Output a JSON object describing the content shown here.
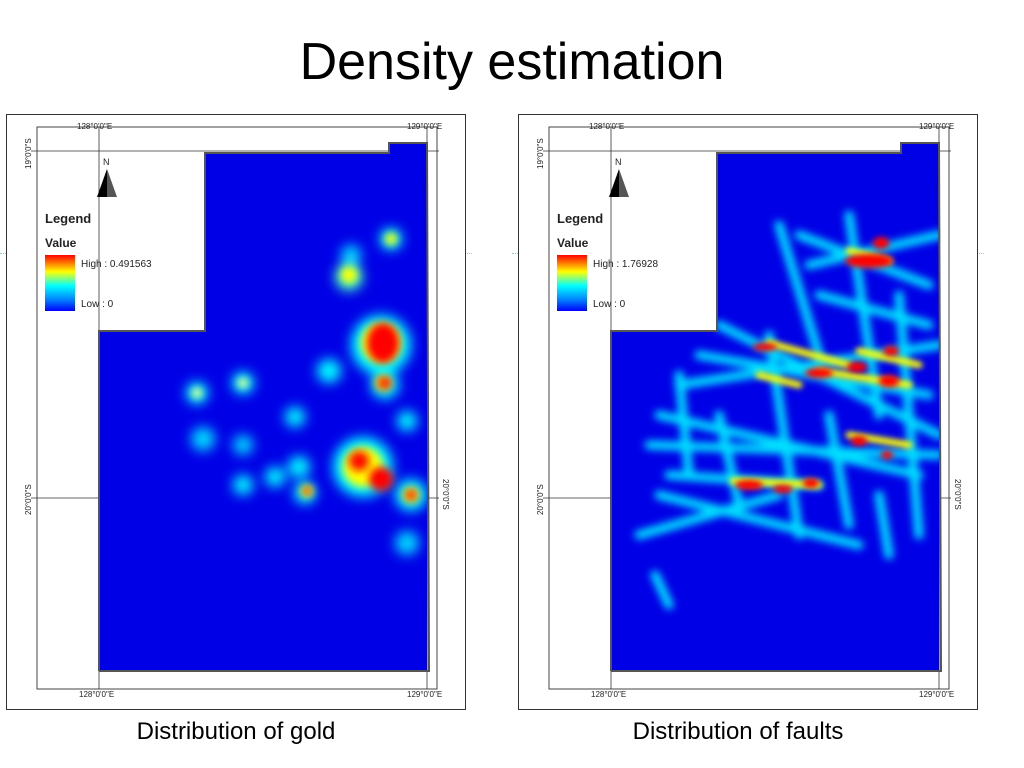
{
  "slide": {
    "title": "Density estimation"
  },
  "maps": [
    {
      "caption": "Distribution of gold",
      "legend": {
        "title": "Legend",
        "subtitle": "Value",
        "high": "High : 0.491563",
        "low": "Low : 0"
      },
      "north_label": "N",
      "coords": {
        "top_left_lon": "128°0'0\"E",
        "top_right_lon": "129°0'0\"E",
        "bottom_left_lon": "128°0'0\"E",
        "bottom_right_lon": "129°0'0\"E",
        "lat_top": "19°0'0\"S",
        "lat_mid_left": "20°0'0\"S",
        "lat_mid_right": "20°0'0\"S"
      }
    },
    {
      "caption": "Distribution of faults",
      "legend": {
        "title": "Legend",
        "subtitle": "Value",
        "high": "High : 1.76928",
        "low": "Low : 0"
      },
      "north_label": "N",
      "coords": {
        "top_left_lon": "128°0'0\"E",
        "top_right_lon": "129°0'0\"E",
        "bottom_left_lon": "128°0'0\"E",
        "bottom_right_lon": "129°0'0\"E",
        "lat_top": "19°0'0\"S",
        "lat_mid_left": "20°0'0\"S",
        "lat_mid_right": "20°0'0\"S"
      }
    }
  ],
  "colors": {
    "background_density": "#0000e6",
    "ramp_high": "#ff0000",
    "ramp_mid": "#ffff00",
    "ramp_low_mid": "#00ffff",
    "ramp_low": "#0000ff"
  }
}
